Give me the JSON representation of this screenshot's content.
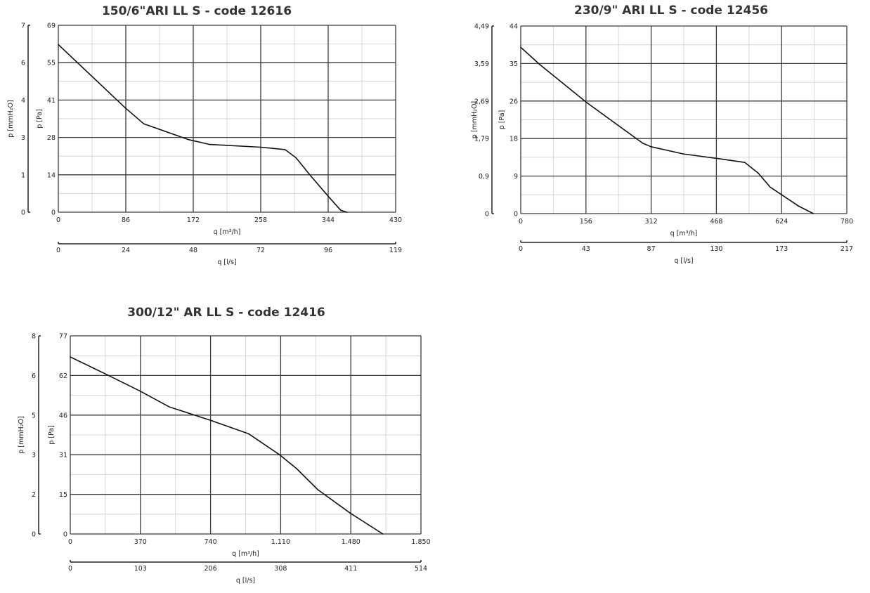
{
  "chart_data": [
    {
      "type": "line",
      "title": "150/6\"ARI LL S - code 12616",
      "xlabel": "q [m³/h]",
      "x2label": "q [l/s]",
      "ylabel": "p [Pa]",
      "y2label": "p [mmH₂O]",
      "xlim": [
        0,
        430
      ],
      "ylim": [
        0,
        69
      ],
      "x_ticks": [
        "0",
        "86",
        "172",
        "258",
        "344",
        "430"
      ],
      "x2_ticks": [
        "0",
        "24",
        "48",
        "72",
        "96",
        "119"
      ],
      "y_ticks": [
        "0",
        "14",
        "28",
        "41",
        "55",
        "69"
      ],
      "y2_ticks": [
        "0",
        "1",
        "3",
        "4",
        "6",
        "7"
      ],
      "grid": true,
      "series": [
        {
          "name": "curve",
          "x": [
            0,
            85,
            109,
            166,
            193,
            258,
            289,
            303,
            320,
            344,
            360,
            368
          ],
          "y": [
            61.9,
            38.6,
            32.6,
            26.8,
            25,
            24,
            23.1,
            20.1,
            14,
            5.9,
            0.7,
            0
          ]
        }
      ]
    },
    {
      "type": "line",
      "title": "230/9\" ARI LL S - code 12456",
      "xlabel": "q [m³/h]",
      "x2label": "q [l/s]",
      "ylabel": "p [Pa]",
      "y2label": "p [mmH₂O]",
      "xlim": [
        0,
        780
      ],
      "ylim": [
        0,
        44
      ],
      "x_ticks": [
        "0",
        "156",
        "312",
        "468",
        "624",
        "780"
      ],
      "x2_ticks": [
        "0",
        "43",
        "87",
        "130",
        "173",
        "217"
      ],
      "y_ticks": [
        "0",
        "9",
        "18",
        "26",
        "35",
        "44"
      ],
      "y2_ticks": [
        "0",
        "0,9",
        "1,79",
        "2,69",
        "3,59",
        "4,49"
      ],
      "grid": true,
      "series": [
        {
          "name": "curve",
          "x": [
            0,
            45,
            157,
            292,
            311,
            388,
            472,
            536,
            568,
            597,
            626,
            664,
            700
          ],
          "y": [
            39,
            35,
            26.1,
            16.5,
            15.7,
            14,
            12.9,
            12,
            9.5,
            6.2,
            4.3,
            1.8,
            0
          ]
        }
      ]
    },
    {
      "type": "line",
      "title": "300/12\" AR LL S - code 12416",
      "xlabel": "q [m³/h]",
      "x2label": "q [l/s]",
      "ylabel": "p [Pa]",
      "y2label": "p [mmH₂O]",
      "xlim": [
        0,
        1850
      ],
      "ylim": [
        0,
        77
      ],
      "x_ticks": [
        "0",
        "370",
        "740",
        "1.110",
        "1.480",
        "1.850"
      ],
      "x2_ticks": [
        "0",
        "103",
        "206",
        "308",
        "411",
        "514"
      ],
      "y_ticks": [
        "0",
        "15",
        "31",
        "46",
        "62",
        "77"
      ],
      "y2_ticks": [
        "0",
        "2",
        "3",
        "5",
        "6",
        "8"
      ],
      "grid": true,
      "series": [
        {
          "name": "curve",
          "x": [
            0,
            194,
            369,
            522,
            739,
            940,
            1104,
            1194,
            1306,
            1477,
            1649
          ],
          "y": [
            68.8,
            61.9,
            55.5,
            49.4,
            44.2,
            39,
            30.8,
            25.4,
            17.2,
            8.1,
            0
          ]
        }
      ]
    }
  ]
}
